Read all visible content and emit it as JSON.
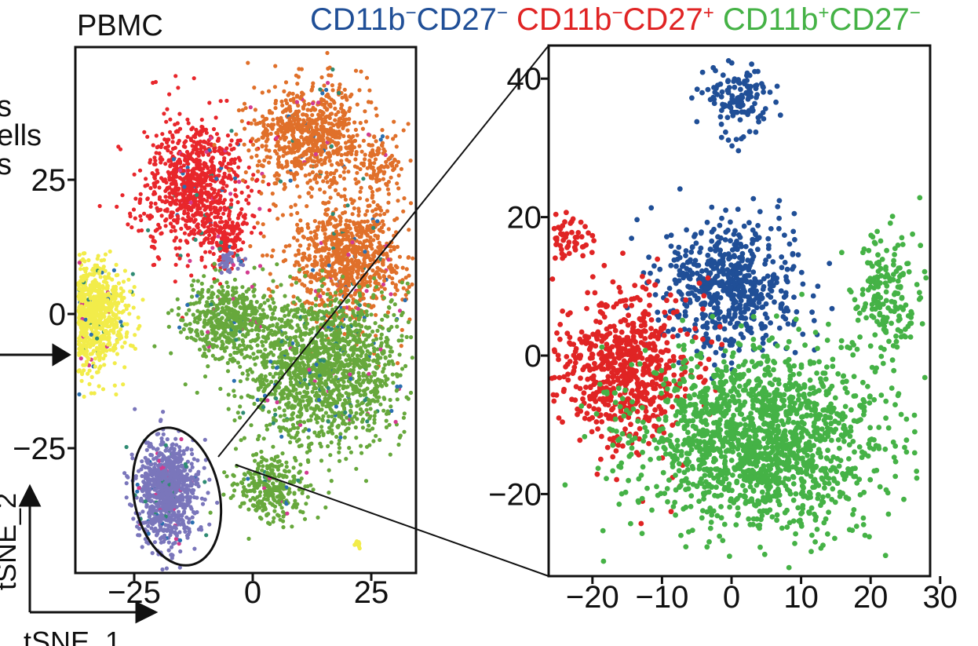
{
  "chart_data": [
    {
      "panel": "left",
      "type": "scatter",
      "title": "PBMC",
      "xlabel": "tSNE_1",
      "ylabel": "tSNE_2",
      "cut_labels": [
        "s",
        "ells",
        "s"
      ],
      "xticks": [
        "−25",
        "0",
        "25"
      ],
      "yticks": [
        "25",
        "0",
        "−25"
      ],
      "xlim": [
        -43,
        43
      ],
      "ylim": [
        -43,
        45
      ],
      "clusters": [
        {
          "color": "#e8262b",
          "center": [
            -12,
            24
          ],
          "spread": [
            7,
            8
          ],
          "count": 900
        },
        {
          "color": "#e8262b",
          "center": [
            -6,
            14
          ],
          "spread": [
            3,
            3
          ],
          "count": 120
        },
        {
          "color": "#e0702a",
          "center": [
            12,
            33
          ],
          "spread": [
            8,
            6
          ],
          "count": 800
        },
        {
          "color": "#e0702a",
          "center": [
            20,
            10
          ],
          "spread": [
            8,
            7
          ],
          "count": 900
        },
        {
          "color": "#e0702a",
          "center": [
            27,
            28
          ],
          "spread": [
            3,
            3
          ],
          "count": 90
        },
        {
          "color": "#f2ec4a",
          "center": [
            -35,
            0
          ],
          "spread": [
            5,
            6
          ],
          "count": 1100
        },
        {
          "color": "#67a83c",
          "center": [
            15,
            -10
          ],
          "spread": [
            11,
            9
          ],
          "count": 1600
        },
        {
          "color": "#67a83c",
          "center": [
            -5,
            -1
          ],
          "spread": [
            6,
            4
          ],
          "count": 500
        },
        {
          "color": "#67a83c",
          "center": [
            4,
            -32
          ],
          "spread": [
            5,
            4
          ],
          "count": 300
        },
        {
          "color": "#7a76bb",
          "center": [
            -18,
            -33
          ],
          "spread": [
            4,
            6
          ],
          "count": 900
        },
        {
          "color": "#7a76bb",
          "center": [
            -5,
            10
          ],
          "spread": [
            1.5,
            1.5
          ],
          "count": 40
        },
        {
          "color": "#f2ec4a",
          "center": [
            -44,
            -25
          ],
          "spread": [
            0.6,
            0.6
          ],
          "count": 15
        },
        {
          "color": "#f2ec4a",
          "center": [
            22,
            -43
          ],
          "spread": [
            0.6,
            0.5
          ],
          "count": 10
        }
      ],
      "speckle_colors": [
        "#2f8b73",
        "#d33b8f",
        "#2a6fb0"
      ],
      "highlight_ellipse": {
        "center": [
          -16,
          -34
        ],
        "radius": [
          9,
          13
        ]
      }
    },
    {
      "panel": "right",
      "type": "scatter",
      "legend": [
        {
          "label": "CD11b",
          "sup1": "−",
          "mid": "CD27",
          "sup2": "−",
          "color": "#204f97"
        },
        {
          "label": "CD11b",
          "sup1": "−",
          "mid": "CD27",
          "sup2": "+",
          "color": "#e02424"
        },
        {
          "label": "CD11b",
          "sup1": "+",
          "mid": "CD27",
          "sup2": "−",
          "color": "#45b246"
        }
      ],
      "legend_placement": "top",
      "xticks": [
        "−20",
        "−10",
        "0",
        "10",
        "20",
        "30"
      ],
      "yticks": [
        "40",
        "20",
        "0",
        "−20"
      ],
      "xlim": [
        -28,
        29
      ],
      "ylim": [
        -32,
        44
      ],
      "clusters": [
        {
          "color": "#204f97",
          "center": [
            1,
            37
          ],
          "spread": [
            3,
            3
          ],
          "count": 130
        },
        {
          "color": "#204f97",
          "center": [
            0,
            10
          ],
          "spread": [
            6,
            6
          ],
          "count": 600
        },
        {
          "color": "#e02424",
          "center": [
            -24,
            17
          ],
          "spread": [
            2,
            2
          ],
          "count": 60
        },
        {
          "color": "#e02424",
          "center": [
            -15,
            -2
          ],
          "spread": [
            6,
            7
          ],
          "count": 650
        },
        {
          "color": "#45b246",
          "center": [
            4,
            -12
          ],
          "spread": [
            11,
            8
          ],
          "count": 1600
        },
        {
          "color": "#45b246",
          "center": [
            22,
            8
          ],
          "spread": [
            3,
            6
          ],
          "count": 180
        }
      ]
    }
  ]
}
